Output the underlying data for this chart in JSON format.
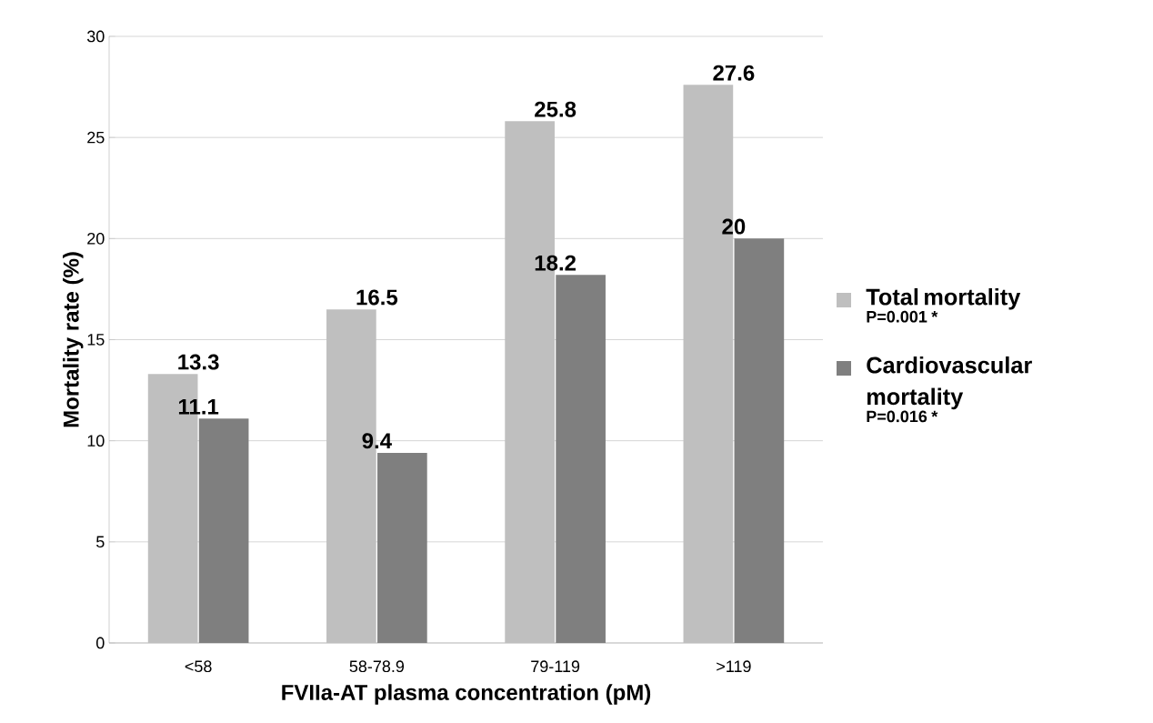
{
  "chart_data": {
    "type": "bar",
    "xlabel": "FVIIa-AT plasma concentration (pM)",
    "ylabel": "Mortality rate (%)",
    "categories": [
      "<58",
      "58-78.9",
      "79-119",
      ">119"
    ],
    "series": [
      {
        "name": "Total mortality",
        "color": "#bfbfbf",
        "values": [
          13.3,
          16.5,
          25.8,
          27.6
        ]
      },
      {
        "name": "Cardiovascular mortality",
        "color": "#7f7f7f",
        "values": [
          11.1,
          9.4,
          18.2,
          20
        ]
      }
    ],
    "annotations": [
      "P=0.001 *",
      "P=0.016 *"
    ],
    "ylim": [
      0,
      30
    ],
    "yticks": [
      0,
      5,
      10,
      15,
      20,
      25,
      30
    ],
    "grid": "y",
    "legend": "right",
    "data_labels": true
  }
}
